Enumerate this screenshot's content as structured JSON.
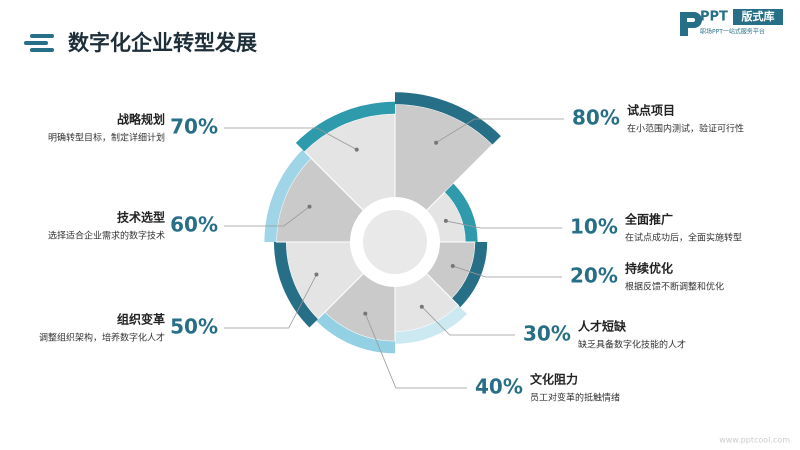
{
  "chart_data": {
    "type": "rose",
    "title": "数字化企业转型发展",
    "categories": [
      "试点项目",
      "全面推广",
      "持续优化",
      "人才短缺",
      "文化阻力",
      "组织变革",
      "技术选型",
      "战略规划"
    ],
    "descriptions": [
      "在小范围内测试，验证可行性",
      "在试点成功后，全面实施转型",
      "根据反馈不断调整和优化",
      "缺乏具备数字化技能的人才",
      "员工对变革的抵触情绪",
      "调整组织架构，培养数字化人才",
      "选择适合企业需求的数字技术",
      "明确转型目标，制定详细计划"
    ],
    "values": [
      80,
      10,
      20,
      30,
      40,
      50,
      60,
      70
    ],
    "value_labels": [
      "80%",
      "10%",
      "20%",
      "30%",
      "40%",
      "50%",
      "60%",
      "70%"
    ],
    "colors": [
      "#276f86",
      "#2e9aac",
      "#276f86",
      "#cce8f1",
      "#93d0e3",
      "#276f86",
      "#9fd5e7",
      "#2e9aac"
    ],
    "fill_colors": [
      "#cacaca",
      "#e4e4e4",
      "#cacaca",
      "#e4e4e4",
      "#cacaca",
      "#e4e4e4",
      "#cacaca",
      "#e4e4e4"
    ]
  },
  "brand": {
    "logo": "PPT",
    "badge": "版式库",
    "slogan": "职场PPT一站式服务平台",
    "url": "www.pptcool.com"
  }
}
